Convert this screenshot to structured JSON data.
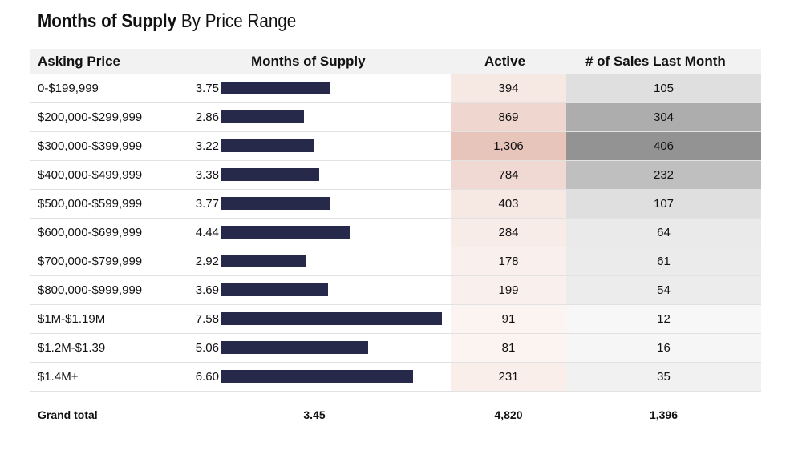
{
  "title": {
    "bold": "Months of Supply",
    "light": "By Price Range"
  },
  "columns": {
    "asking_price": "Asking Price",
    "months_of_supply": "Months of Supply",
    "active": "Active",
    "sales": "# of Sales Last Month"
  },
  "chart_data": {
    "type": "table",
    "title": "Months of Supply By Price Range",
    "bar_max": 7.58,
    "colors": {
      "bar": "#27294a",
      "active_max": "#e8c5bb",
      "active_min": "#fbf4f1",
      "sales_max": "#939393",
      "sales_min": "#f7f7f7"
    },
    "rows": [
      {
        "range": "0-$199,999",
        "mos": 3.75,
        "mos_label": "3.75",
        "active": 394,
        "active_label": "394",
        "sales": 105,
        "sales_label": "105"
      },
      {
        "range": "$200,000-$299,999",
        "mos": 2.86,
        "mos_label": "2.86",
        "active": 869,
        "active_label": "869",
        "sales": 304,
        "sales_label": "304"
      },
      {
        "range": "$300,000-$399,999",
        "mos": 3.22,
        "mos_label": "3.22",
        "active": 1306,
        "active_label": "1,306",
        "sales": 406,
        "sales_label": "406"
      },
      {
        "range": "$400,000-$499,999",
        "mos": 3.38,
        "mos_label": "3.38",
        "active": 784,
        "active_label": "784",
        "sales": 232,
        "sales_label": "232"
      },
      {
        "range": "$500,000-$599,999",
        "mos": 3.77,
        "mos_label": "3.77",
        "active": 403,
        "active_label": "403",
        "sales": 107,
        "sales_label": "107"
      },
      {
        "range": "$600,000-$699,999",
        "mos": 4.44,
        "mos_label": "4.44",
        "active": 284,
        "active_label": "284",
        "sales": 64,
        "sales_label": "64"
      },
      {
        "range": "$700,000-$799,999",
        "mos": 2.92,
        "mos_label": "2.92",
        "active": 178,
        "active_label": "178",
        "sales": 61,
        "sales_label": "61"
      },
      {
        "range": "$800,000-$999,999",
        "mos": 3.69,
        "mos_label": "3.69",
        "active": 199,
        "active_label": "199",
        "sales": 54,
        "sales_label": "54"
      },
      {
        "range": "$1M-$1.19M",
        "mos": 7.58,
        "mos_label": "7.58",
        "active": 91,
        "active_label": "91",
        "sales": 12,
        "sales_label": "12"
      },
      {
        "range": "$1.2M-$1.39",
        "mos": 5.06,
        "mos_label": "5.06",
        "active": 81,
        "active_label": "81",
        "sales": 16,
        "sales_label": "16"
      },
      {
        "range": "$1.4M+",
        "mos": 6.6,
        "mos_label": "6.60",
        "active": 231,
        "active_label": "231",
        "sales": 35,
        "sales_label": "35"
      }
    ],
    "total": {
      "label": "Grand total",
      "mos": "3.45",
      "active": "4,820",
      "sales": "1,396"
    }
  }
}
